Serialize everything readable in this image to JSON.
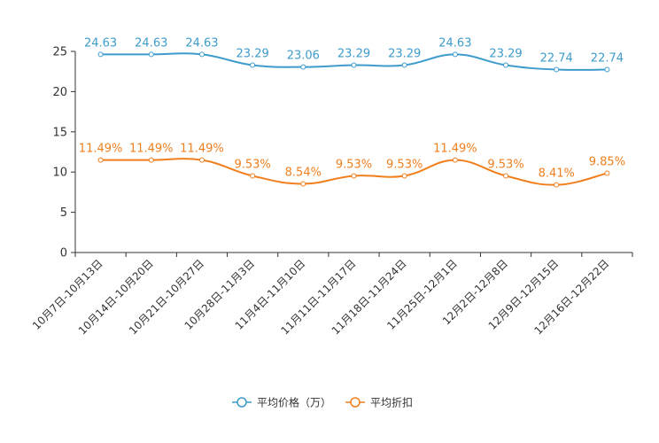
{
  "chart_data": {
    "type": "line",
    "title": "",
    "xlabel": "",
    "ylabel": "",
    "ylim": [
      0,
      25
    ],
    "yticks": [
      0,
      5,
      10,
      15,
      20,
      25
    ],
    "grid": false,
    "legend_position": "bottom-center",
    "categories": [
      "10月7日-10月13日",
      "10月14日-10月20日",
      "10月21日-10月27日",
      "10月28日-11月3日",
      "11月4日-11月10日",
      "11月11日-11月17日",
      "11月18日-11月24日",
      "11月25日-12月1日",
      "12月2日-12月8日",
      "12月9日-12月15日",
      "12月16日-12月22日"
    ],
    "series": [
      {
        "name": "平均价格（万）",
        "color": "#3d9ccc",
        "values": [
          24.63,
          24.63,
          24.63,
          23.29,
          23.06,
          23.29,
          23.29,
          24.63,
          23.29,
          22.74,
          22.74
        ],
        "labels": [
          "24.63",
          "24.63",
          "24.63",
          "23.29",
          "23.06",
          "23.29",
          "23.29",
          "24.63",
          "23.29",
          "22.74",
          "22.74"
        ]
      },
      {
        "name": "平均折扣",
        "color": "#f07f1e",
        "values": [
          11.49,
          11.49,
          11.49,
          9.53,
          8.54,
          9.53,
          9.53,
          11.49,
          9.53,
          8.41,
          9.85
        ],
        "labels": [
          "11.49%",
          "11.49%",
          "11.49%",
          "9.53%",
          "8.54%",
          "9.53%",
          "9.53%",
          "11.49%",
          "9.53%",
          "8.41%",
          "9.85%"
        ]
      }
    ]
  }
}
